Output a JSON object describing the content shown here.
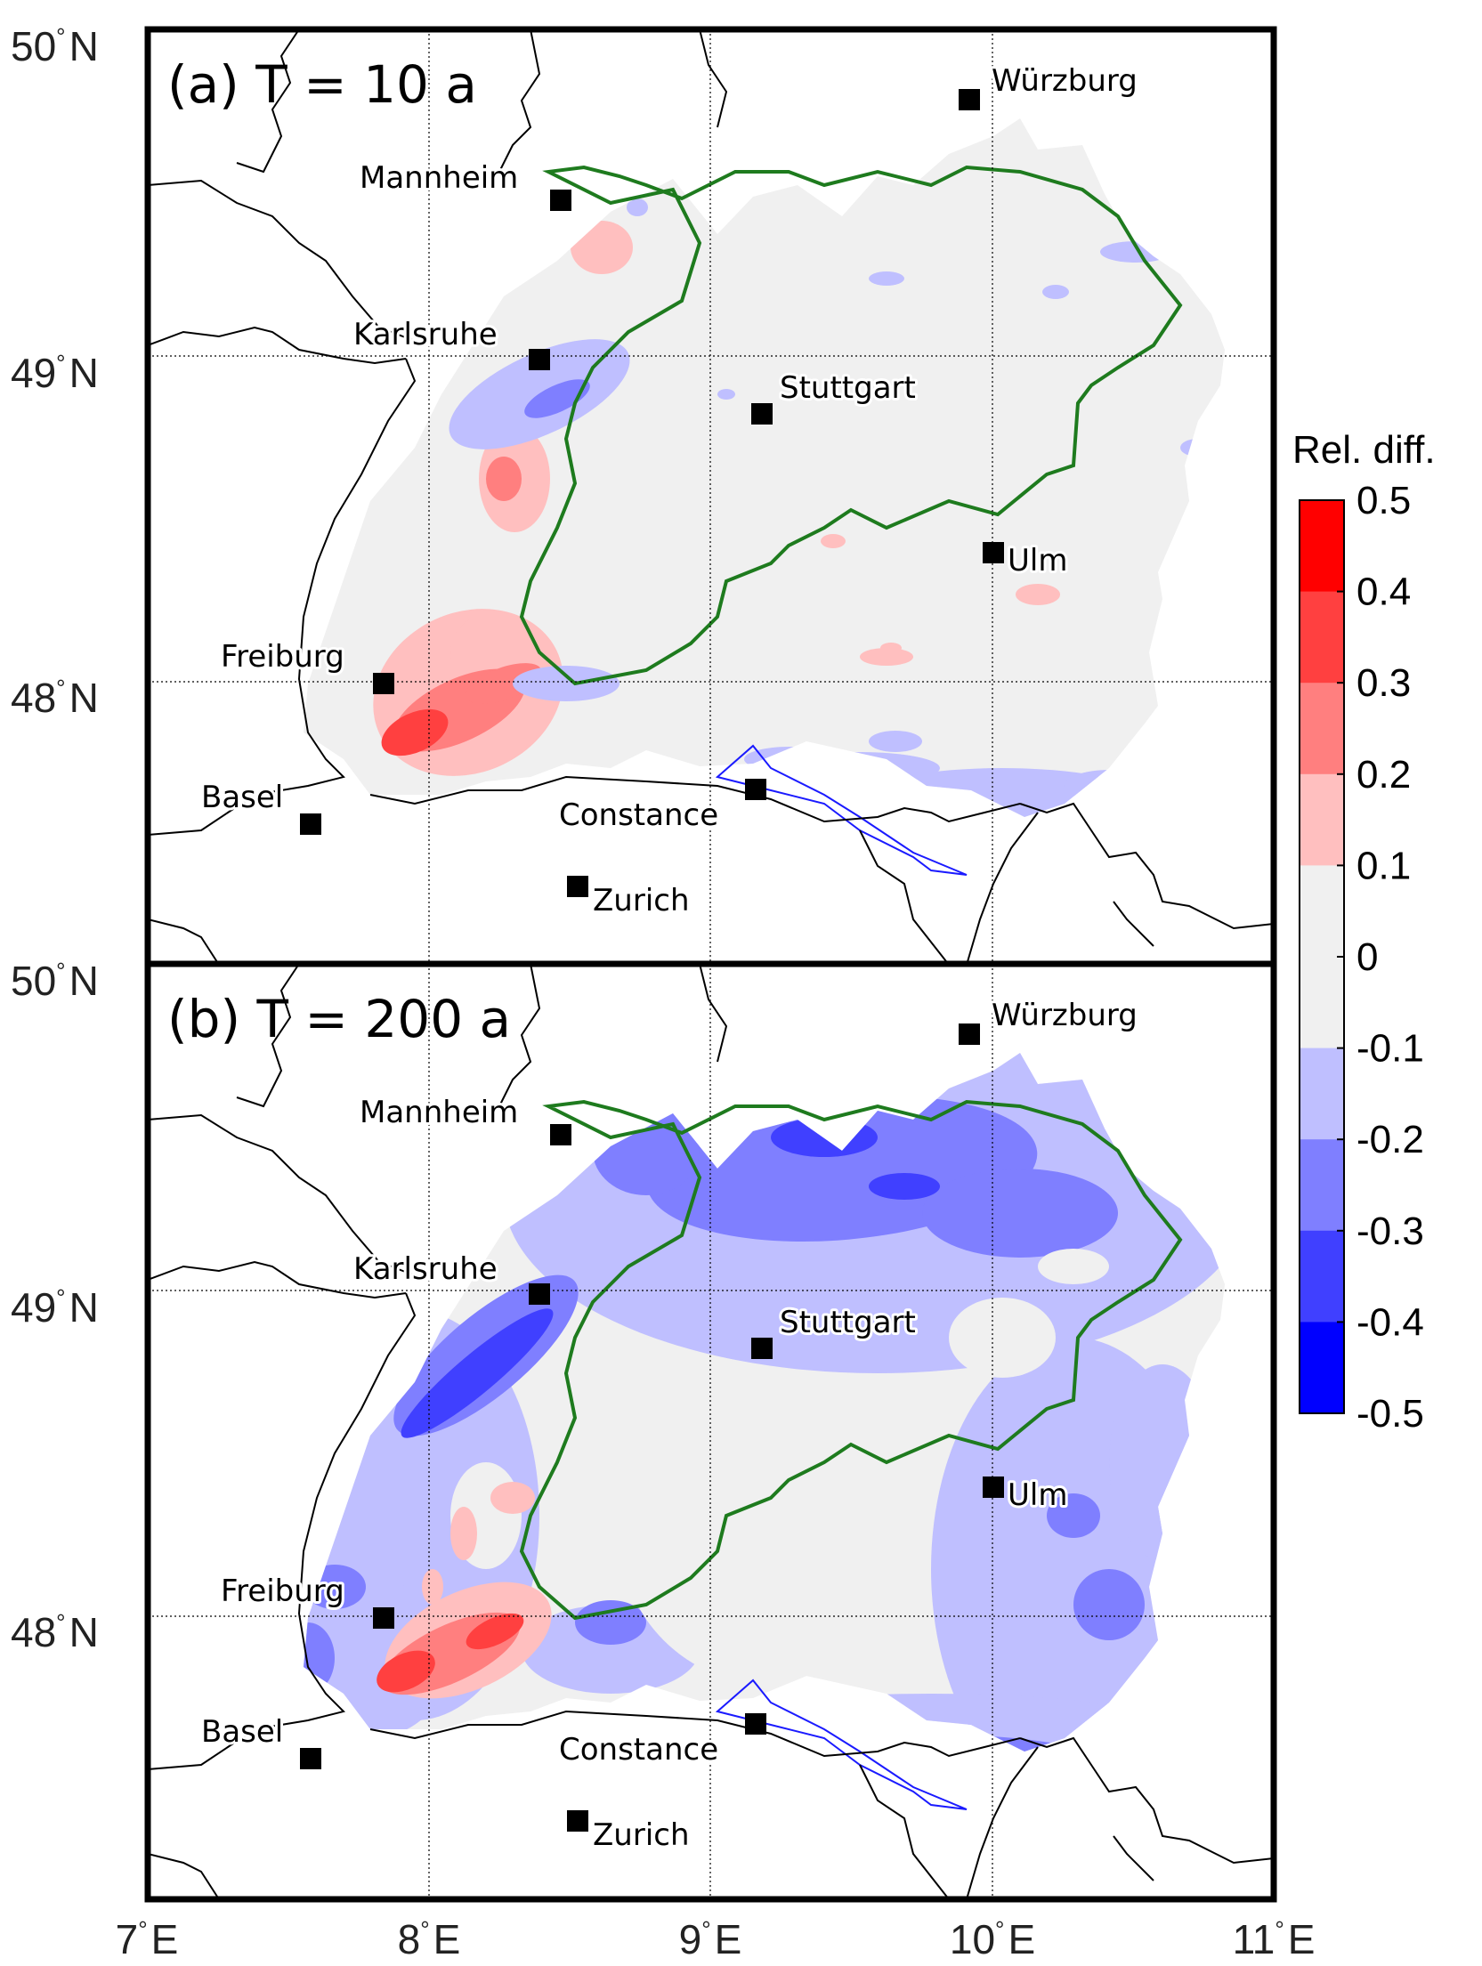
{
  "panels": [
    {
      "title": "(a) T = 10 a",
      "cities": [
        {
          "name": "Würzburg"
        },
        {
          "name": "Mannheim"
        },
        {
          "name": "Karlsruhe"
        },
        {
          "name": "Stuttgart"
        },
        {
          "name": "Ulm"
        },
        {
          "name": "Freiburg"
        },
        {
          "name": "Basel"
        },
        {
          "name": "Constance"
        },
        {
          "name": "Zurich"
        }
      ]
    },
    {
      "title": "(b) T = 200 a",
      "cities": [
        {
          "name": "Würzburg"
        },
        {
          "name": "Mannheim"
        },
        {
          "name": "Karlsruhe"
        },
        {
          "name": "Stuttgart"
        },
        {
          "name": "Ulm"
        },
        {
          "name": "Freiburg"
        },
        {
          "name": "Basel"
        },
        {
          "name": "Constance"
        },
        {
          "name": "Zurich"
        }
      ]
    }
  ],
  "lat_labels": [
    {
      "deg": "50",
      "hem": "N"
    },
    {
      "deg": "49",
      "hem": "N"
    },
    {
      "deg": "48",
      "hem": "N"
    }
  ],
  "lon_labels": [
    {
      "deg": "7",
      "hem": "E"
    },
    {
      "deg": "8",
      "hem": "E"
    },
    {
      "deg": "9",
      "hem": "E"
    },
    {
      "deg": "10",
      "hem": "E"
    },
    {
      "deg": "11",
      "hem": "E"
    }
  ],
  "colorbar": {
    "title": "Rel. diff.",
    "ticks": [
      "0.5",
      "0.4",
      "0.3",
      "0.2",
      "0.1",
      "0",
      "-0.1",
      "-0.2",
      "-0.3",
      "-0.4",
      "-0.5"
    ],
    "colors": [
      "#ff0000",
      "#ff4040",
      "#ff7f7f",
      "#ffbfbf",
      "#f0f0f0",
      "#f0f0f0",
      "#bfbfff",
      "#7f7fff",
      "#4040ff",
      "#0000ff"
    ]
  },
  "colors": {
    "state_border": "#1e7b1e",
    "country_border": "#000000",
    "lake": "#1a1aff",
    "land_fill": "#f0f0f0"
  }
}
